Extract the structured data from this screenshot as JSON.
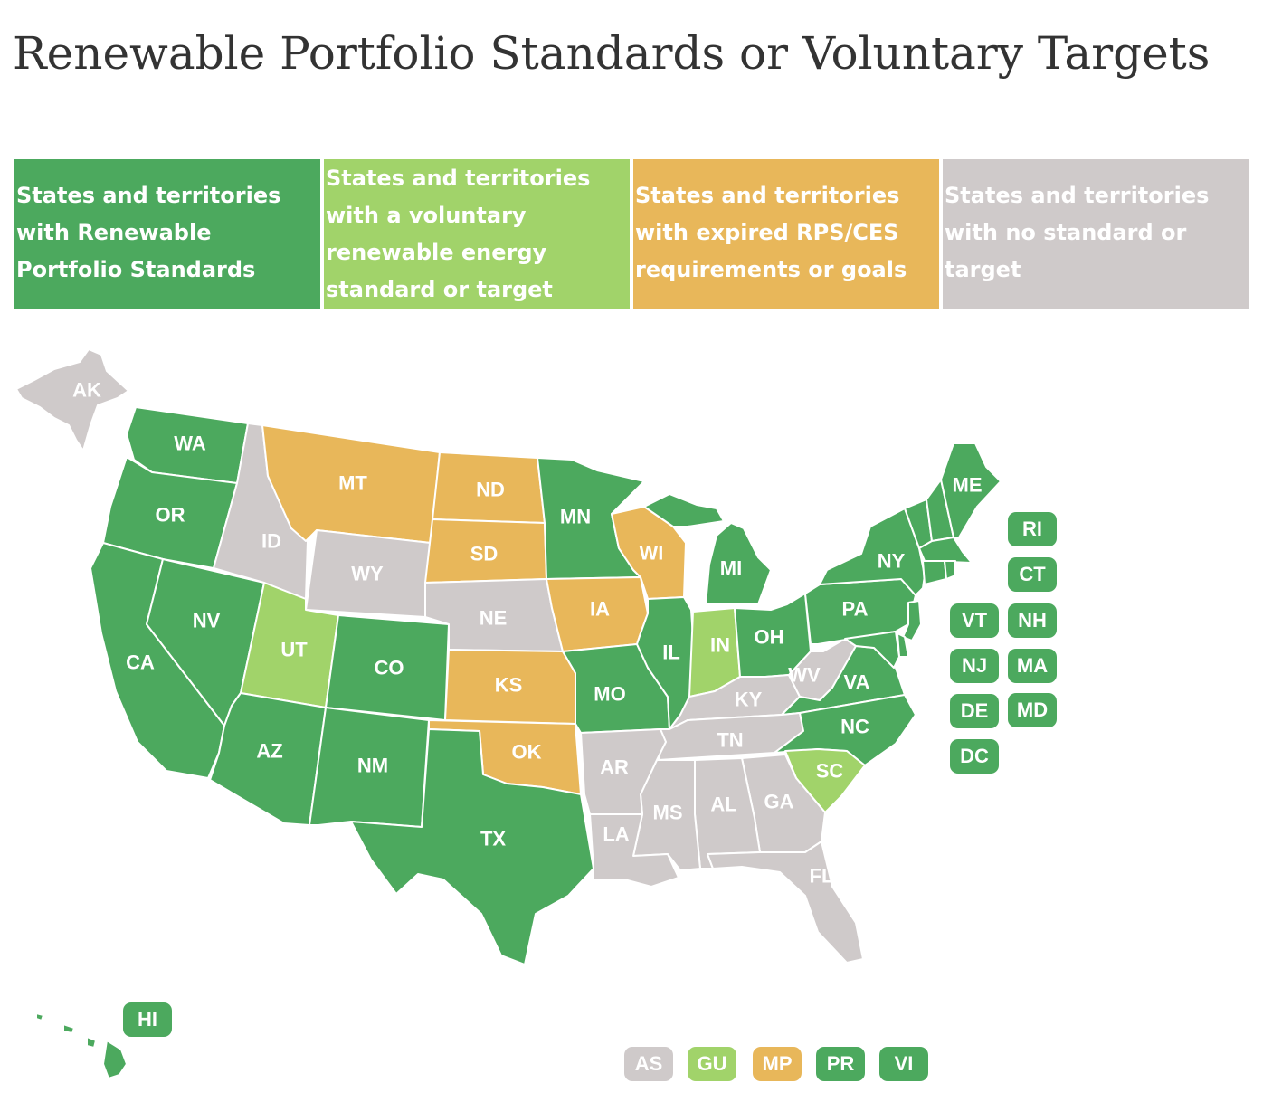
{
  "title": "Renewable Portfolio Standards or Voluntary Targets",
  "colors": {
    "rps": "#4ca95e",
    "voluntary": "#a1d36a",
    "expired": "#e8b75a",
    "none": "#cfcaca"
  },
  "legend": [
    {
      "category": "rps",
      "label": "States and territories with Renewable Portfolio Standards"
    },
    {
      "category": "voluntary",
      "label": "States and territories with a voluntary renewable energy standard or target"
    },
    {
      "category": "expired",
      "label": "States and territories with expired RPS/CES requirements or goals"
    },
    {
      "category": "none",
      "label": "States and territories with no standard or target"
    }
  ],
  "states": {
    "AK": "none",
    "HI": "rps",
    "WA": "rps",
    "OR": "rps",
    "CA": "rps",
    "NV": "rps",
    "ID": "none",
    "MT": "expired",
    "WY": "none",
    "UT": "voluntary",
    "AZ": "rps",
    "CO": "rps",
    "NM": "rps",
    "ND": "expired",
    "SD": "expired",
    "NE": "none",
    "KS": "expired",
    "OK": "expired",
    "TX": "rps",
    "MN": "rps",
    "IA": "expired",
    "MO": "rps",
    "AR": "none",
    "LA": "none",
    "WI": "expired",
    "IL": "rps",
    "MI": "rps",
    "IN": "voluntary",
    "OH": "rps",
    "KY": "none",
    "TN": "none",
    "MS": "none",
    "AL": "none",
    "GA": "none",
    "FL": "none",
    "SC": "voluntary",
    "NC": "rps",
    "VA": "rps",
    "WV": "none",
    "PA": "rps",
    "NY": "rps",
    "ME": "rps",
    "VT": "rps",
    "NH": "rps",
    "MA": "rps",
    "RI": "rps",
    "CT": "rps",
    "NJ": "rps",
    "DE": "rps",
    "MD": "rps",
    "DC": "rps"
  },
  "small_state_badges": [
    {
      "code": "RI",
      "category": "rps"
    },
    {
      "code": "CT",
      "category": "rps"
    },
    {
      "code": "VT",
      "category": "rps"
    },
    {
      "code": "NH",
      "category": "rps"
    },
    {
      "code": "NJ",
      "category": "rps"
    },
    {
      "code": "MA",
      "category": "rps"
    },
    {
      "code": "DE",
      "category": "rps"
    },
    {
      "code": "MD",
      "category": "rps"
    },
    {
      "code": "DC",
      "category": "rps"
    },
    {
      "code": "HI",
      "category": "rps"
    }
  ],
  "territories": [
    {
      "code": "AS",
      "category": "none"
    },
    {
      "code": "GU",
      "category": "voluntary"
    },
    {
      "code": "MP",
      "category": "expired"
    },
    {
      "code": "PR",
      "category": "rps"
    },
    {
      "code": "VI",
      "category": "rps"
    }
  ]
}
